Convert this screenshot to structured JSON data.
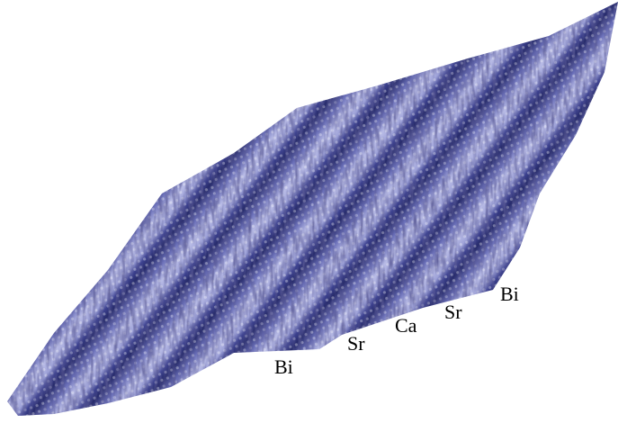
{
  "labels": [
    "Bi",
    "Sr",
    "Ca",
    "Sr",
    "Bi"
  ]
}
